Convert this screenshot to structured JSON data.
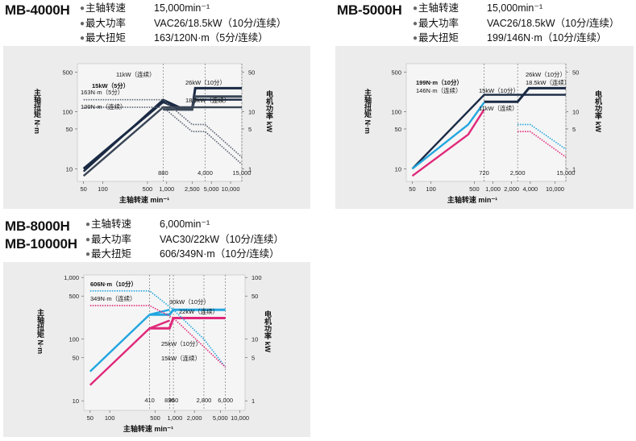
{
  "models": [
    {
      "names": [
        "MB-4000H"
      ],
      "specs": [
        {
          "label": "主轴转速",
          "value": "15,000min⁻¹"
        },
        {
          "label": "最大功率",
          "value": "VAC26/18.5kW（10分/连续）"
        },
        {
          "label": "最大扭矩",
          "value": "163/120N·m（5分/连续）"
        }
      ]
    },
    {
      "names": [
        "MB-5000H"
      ],
      "specs": [
        {
          "label": "主轴转速",
          "value": "15,000min⁻¹"
        },
        {
          "label": "最大功率",
          "value": "VAC26/18.5kW（10分/连续）"
        },
        {
          "label": "最大扭矩",
          "value": "199/146N·m（10分/连续）"
        }
      ]
    },
    {
      "names": [
        "MB-8000H",
        "MB-10000H"
      ],
      "specs": [
        {
          "label": "主轴转速",
          "value": "6,000min⁻¹"
        },
        {
          "label": "最大功率",
          "value": "VAC30/22kW（10分/连续）"
        },
        {
          "label": "最大扭矩",
          "value": "606/349N·m（10分/连续）"
        }
      ]
    }
  ],
  "chart_data": [
    {
      "type": "line",
      "xlabel": "主轴转速 min⁻¹",
      "ylabel_left": "主轴扭矩 N·m",
      "ylabel_right": "电机功率 kW",
      "x_scale": "log",
      "y_scale": "log",
      "xlim": [
        40,
        15000
      ],
      "ylim_left": [
        6,
        700
      ],
      "ylim_right": [
        0.6,
        70
      ],
      "x_ticks": [
        50,
        100,
        500,
        1000,
        2500,
        5000,
        10000
      ],
      "x_tick_labels": [
        "50",
        "100",
        "500",
        "1,000",
        "2,500",
        "5,000",
        "10,000"
      ],
      "y_ticks_left": [
        10,
        50,
        100,
        500
      ],
      "y_ticks_right": [
        1,
        5,
        10,
        50
      ],
      "vlines": [
        {
          "x": 880,
          "label": "880"
        },
        {
          "x": 4000,
          "label": "4,000"
        },
        {
          "x": 15000,
          "label": "15,000"
        }
      ],
      "annotations": [
        "15kW（5分）",
        "11kW（连续）",
        "26kW（10分）",
        "18.5kW（连续）",
        "163N·m（5分）",
        "120N·m（连续）"
      ],
      "series": [
        {
          "name": "",
          "color": "#1a2a44",
          "style": "solid",
          "torque": [
            [
              50,
              9
            ],
            [
              880,
              163
            ],
            [
              1600,
              120
            ],
            [
              2500,
              120
            ],
            [
              2800,
              163
            ],
            [
              15000,
              163
            ]
          ],
          "power": [
            [
              50,
              1
            ],
            [
              880,
              15
            ],
            [
              1600,
              11
            ],
            [
              2500,
              11
            ],
            [
              2800,
              26
            ],
            [
              15000,
              26
            ]
          ]
        },
        {
          "name": "",
          "color": "#3a4656",
          "style": "solid",
          "torque": [
            [
              50,
              7.5
            ],
            [
              880,
              120
            ],
            [
              2500,
              120
            ],
            [
              15000,
              120
            ]
          ],
          "power": [
            [
              880,
              11
            ],
            [
              2500,
              11
            ],
            [
              2800,
              18.5
            ],
            [
              15000,
              18.5
            ]
          ]
        },
        {
          "name": "",
          "color": "#5a6270",
          "style": "dotted",
          "torque": [
            [
              50,
              163
            ],
            [
              880,
              163
            ],
            [
              2500,
              60
            ],
            [
              4000,
              60
            ],
            [
              15000,
              16
            ]
          ],
          "power": []
        },
        {
          "name": "",
          "color": "#5a6270",
          "style": "dotted",
          "torque": [
            [
              50,
              120
            ],
            [
              880,
              120
            ],
            [
              2500,
              45
            ],
            [
              4000,
              45
            ],
            [
              15000,
              12
            ]
          ],
          "power": []
        }
      ]
    },
    {
      "type": "line",
      "xlabel": "主轴转速 min⁻¹",
      "ylabel_left": "主轴扭矩 N·m",
      "ylabel_right": "电机功率 kW",
      "x_scale": "log",
      "y_scale": "log",
      "xlim": [
        40,
        15000
      ],
      "ylim_left": [
        6,
        700
      ],
      "ylim_right": [
        0.6,
        70
      ],
      "x_ticks": [
        50,
        100,
        500,
        1000,
        2000,
        4000,
        10000
      ],
      "x_tick_labels": [
        "50",
        "100",
        "500",
        "1,000",
        "2,000",
        "4,000",
        "10,000"
      ],
      "y_ticks_left": [
        10,
        50,
        100,
        500
      ],
      "y_ticks_right": [
        1,
        5,
        10,
        50
      ],
      "vlines": [
        {
          "x": 720,
          "label": "720"
        },
        {
          "x": 2500,
          "label": "2,500"
        },
        {
          "x": 15000,
          "label": "15,000"
        }
      ],
      "annotations": [
        "199N·m（10分）",
        "146N·m（连续）",
        "26kW（10分）",
        "18.5kW（连续）",
        "15kW（10分）",
        "11kW（连续）"
      ],
      "series": [
        {
          "name": "",
          "color": "#1a2a44",
          "style": "solid",
          "torque": [
            [
              50,
              10
            ],
            [
              720,
              199
            ],
            [
              2500,
              199
            ],
            [
              15000,
              199
            ]
          ],
          "power": [
            [
              720,
              15
            ],
            [
              2500,
              15
            ],
            [
              3800,
              26
            ],
            [
              15000,
              26
            ]
          ]
        },
        {
          "name": "",
          "color": "#22a6e0",
          "style": "solid",
          "torque": [
            [
              50,
              10
            ],
            [
              400,
              60
            ],
            [
              720,
              146
            ]
          ],
          "power": []
        },
        {
          "name": "",
          "color": "#e0287a",
          "style": "solid",
          "torque": [
            [
              50,
              7.5
            ],
            [
              400,
              40
            ],
            [
              720,
              110
            ]
          ],
          "power": []
        },
        {
          "name": "",
          "color": "#22a6e0",
          "style": "dotted",
          "torque": [
            [
              2500,
              60
            ],
            [
              4000,
              60
            ],
            [
              15000,
              22
            ]
          ],
          "power": []
        },
        {
          "name": "",
          "color": "#e0287a",
          "style": "dotted",
          "torque": [
            [
              2500,
              45
            ],
            [
              4000,
              45
            ],
            [
              15000,
              16
            ]
          ],
          "power": []
        }
      ]
    },
    {
      "type": "line",
      "xlabel": "主轴转速 min⁻¹",
      "ylabel_left": "主轴扭矩 N·m",
      "ylabel_right": "电机功率 kW",
      "x_scale": "log",
      "y_scale": "log",
      "xlim": [
        40,
        12000
      ],
      "ylim_left": [
        7,
        1100
      ],
      "ylim_right": [
        0.7,
        110
      ],
      "x_ticks": [
        50,
        100,
        500,
        1000,
        2000,
        5000,
        10000
      ],
      "x_tick_labels": [
        "50",
        "100",
        "500",
        "1,000",
        "2,000",
        "5,000",
        "10,000"
      ],
      "y_ticks_left": [
        10,
        50,
        100,
        500,
        1000
      ],
      "y_ticks_right": [
        1,
        5,
        10,
        50,
        100
      ],
      "y_tick_labels_left": [
        "10",
        "50",
        "100",
        "500",
        "1,000"
      ],
      "vlines": [
        {
          "x": 410,
          "label": "410"
        },
        {
          "x": 830,
          "label": "830"
        },
        {
          "x": 950,
          "label": "950"
        },
        {
          "x": 2800,
          "label": "2,800"
        },
        {
          "x": 6000,
          "label": "6,000"
        }
      ],
      "annotations": [
        "606N·m（10分）",
        "349N·m（连续）",
        "30kW（10分）",
        "22kW（连续）",
        "25kW（10分）",
        "15kW（连续）"
      ],
      "series": [
        {
          "name": "",
          "color": "#22a6e0",
          "style": "solid",
          "torque": [
            [
              50,
              30
            ],
            [
              410,
              250
            ],
            [
              830,
              300
            ]
          ],
          "power": [
            [
              410,
              25
            ],
            [
              830,
              25
            ],
            [
              950,
              30
            ],
            [
              6000,
              30
            ]
          ]
        },
        {
          "name": "",
          "color": "#e0287a",
          "style": "solid",
          "torque": [
            [
              50,
              18
            ],
            [
              410,
              150
            ],
            [
              830,
              200
            ]
          ],
          "power": [
            [
              410,
              15
            ],
            [
              830,
              15
            ],
            [
              950,
              22
            ],
            [
              6000,
              22
            ]
          ]
        },
        {
          "name": "",
          "color": "#22a6e0",
          "style": "dotted",
          "torque": [
            [
              50,
              606
            ],
            [
              410,
              606
            ],
            [
              950,
              300
            ],
            [
              2800,
              100
            ],
            [
              6000,
              35
            ]
          ],
          "power": []
        },
        {
          "name": "",
          "color": "#e0287a",
          "style": "dotted",
          "torque": [
            [
              50,
              349
            ],
            [
              410,
              349
            ],
            [
              950,
              220
            ],
            [
              2800,
              75
            ],
            [
              6000,
              35
            ]
          ],
          "power": []
        }
      ]
    }
  ]
}
